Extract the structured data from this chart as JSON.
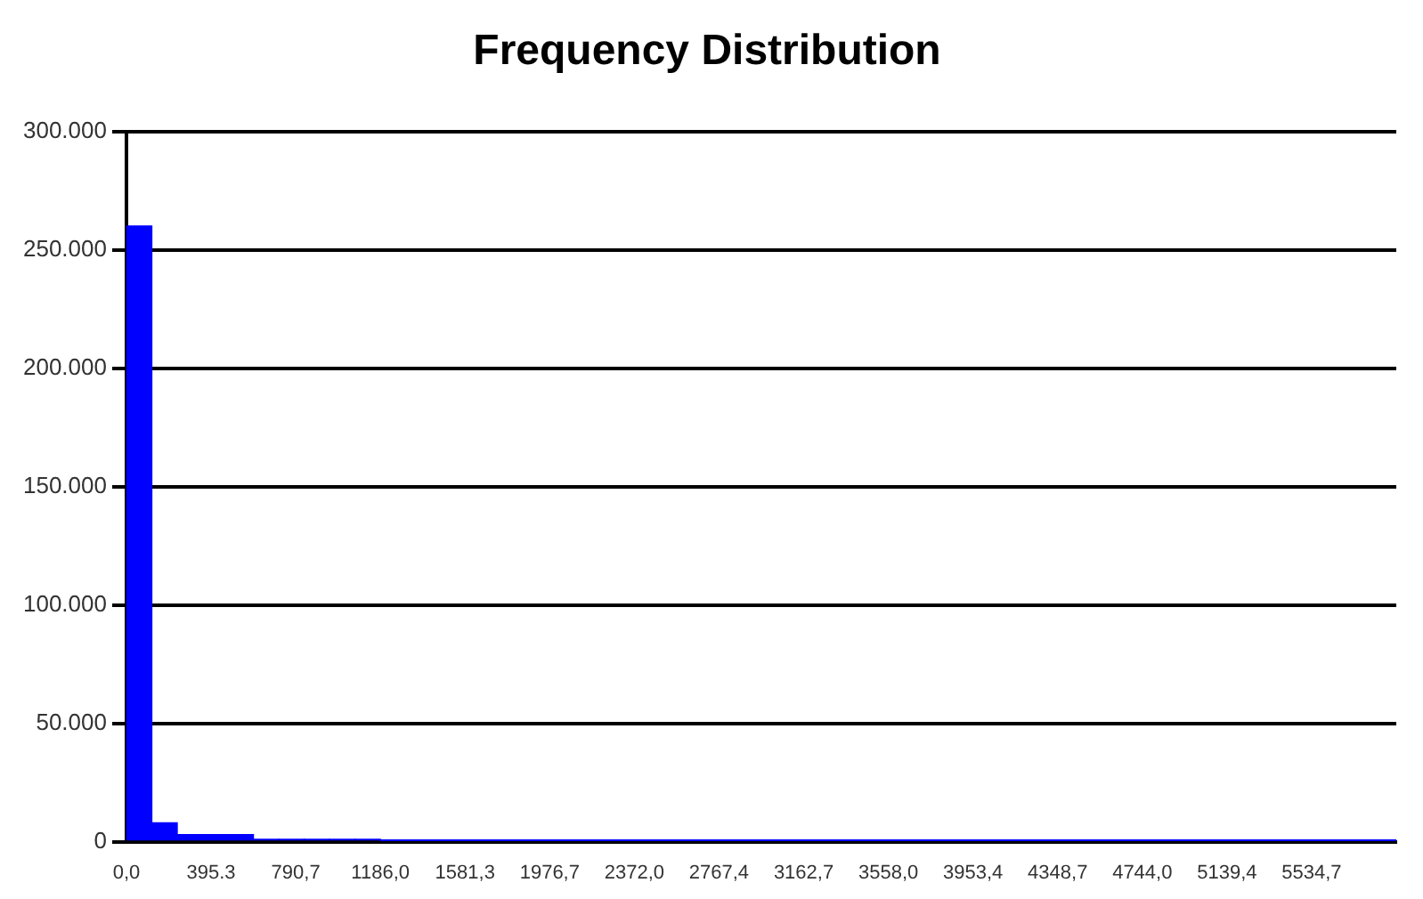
{
  "chart_data": {
    "type": "histogram",
    "title": "Frequency Distribution",
    "bins": [
      0,
      118.6,
      237.2,
      355.8,
      474.4,
      593,
      711.6,
      830.2,
      948.8,
      1067.4,
      1186,
      1304.6,
      1423.2,
      1541.8,
      1660.4,
      1779,
      1897.6,
      2016.2,
      2134.8,
      2253.4,
      2372,
      2490.6,
      2609.2,
      2727.8,
      2846.4,
      2965,
      3083.6,
      3202.2,
      3320.8,
      3439.4,
      3558,
      3676.6,
      3795.2,
      3913.8,
      4032.4,
      4151,
      4269.6,
      4388.2,
      4506.8,
      4625.4,
      4744,
      4862.6,
      4981.2,
      5099.8,
      5218.4,
      5337,
      5455.6,
      5574.2,
      5692.8,
      5811.4,
      5930
    ],
    "values": [
      260000,
      8000,
      3000,
      3000,
      3000,
      1000,
      1000,
      1000,
      1000,
      1000,
      500,
      500,
      500,
      500,
      500,
      500,
      500,
      500,
      500,
      500,
      500,
      500,
      500,
      500,
      500,
      500,
      500,
      500,
      500,
      500,
      500,
      500,
      500,
      500,
      500,
      500,
      500,
      500,
      500,
      500,
      500,
      500,
      500,
      500,
      500,
      500,
      500,
      500,
      500,
      500
    ],
    "color": "#0000ff",
    "xlim": [
      0,
      5930
    ],
    "xticks": [
      {
        "value": 0,
        "label": "0,0"
      },
      {
        "value": 395.3,
        "label": "395.3"
      },
      {
        "value": 790.7,
        "label": "790,7"
      },
      {
        "value": 1186,
        "label": "1186,0"
      },
      {
        "value": 1581.3,
        "label": "1581,3"
      },
      {
        "value": 1976.7,
        "label": "1976,7"
      },
      {
        "value": 2372,
        "label": "2372,0"
      },
      {
        "value": 2767.4,
        "label": "2767,4"
      },
      {
        "value": 3162.7,
        "label": "3162,7"
      },
      {
        "value": 3558,
        "label": "3558,0"
      },
      {
        "value": 3953.4,
        "label": "3953,4"
      },
      {
        "value": 4348.7,
        "label": "4348,7"
      },
      {
        "value": 4744,
        "label": "4744,0"
      },
      {
        "value": 5139.4,
        "label": "5139,4"
      },
      {
        "value": 5534.7,
        "label": "5534,7"
      }
    ],
    "ylim": [
      0,
      300000
    ],
    "yticks": [
      0,
      {
        "value": 50000,
        "label": "50.000"
      },
      {
        "value": 100000,
        "label": "100.000"
      },
      {
        "value": 150000,
        "label": "150.000"
      },
      {
        "value": 200000,
        "label": "200.000"
      },
      {
        "value": 250000,
        "label": "250.000"
      },
      {
        "value": 300000,
        "label": "300.000"
      }
    ],
    "grid": "y",
    "legend": false
  }
}
